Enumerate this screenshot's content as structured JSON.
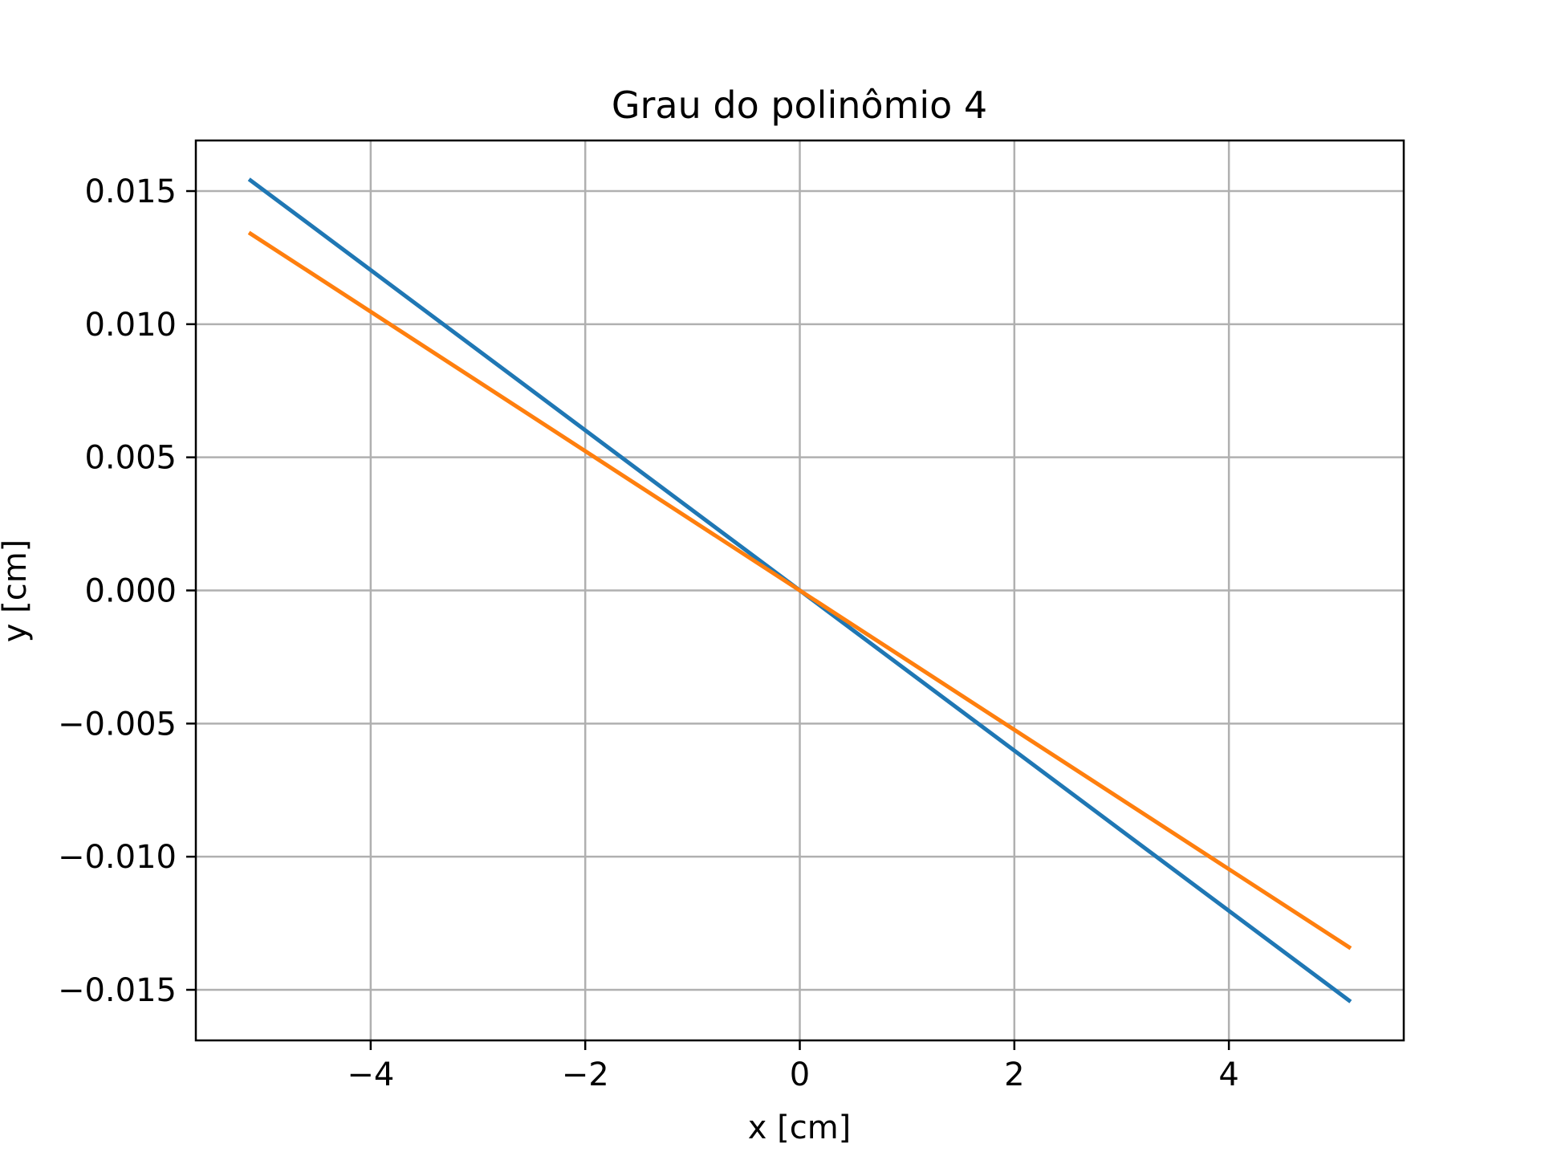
{
  "chart_data": {
    "type": "line",
    "title": "Grau do polinômio 4",
    "xlabel": "x [cm]",
    "ylabel": "y [cm]",
    "xlim": [
      -5.63,
      5.63
    ],
    "ylim": [
      -0.0169,
      0.0169
    ],
    "grid": true,
    "legend": "none",
    "x_ticks": [
      -4,
      -2,
      0,
      2,
      4
    ],
    "x_tick_labels": [
      "−4",
      "−2",
      "0",
      "2",
      "4"
    ],
    "y_ticks": [
      0.015,
      0.01,
      0.005,
      0,
      -0.005,
      -0.01,
      -0.015
    ],
    "y_tick_labels": [
      "0.015",
      "0.010",
      "0.005",
      "0.000",
      "−0.005",
      "−0.010",
      "−0.015"
    ],
    "series": [
      {
        "color": "#1f77b4",
        "x": [
          -5.12,
          5.12
        ],
        "y": [
          0.0154,
          -0.0154
        ]
      },
      {
        "color": "#ff7f0e",
        "x": [
          -5.12,
          5.12
        ],
        "y": [
          0.0134,
          -0.0134
        ]
      }
    ]
  }
}
